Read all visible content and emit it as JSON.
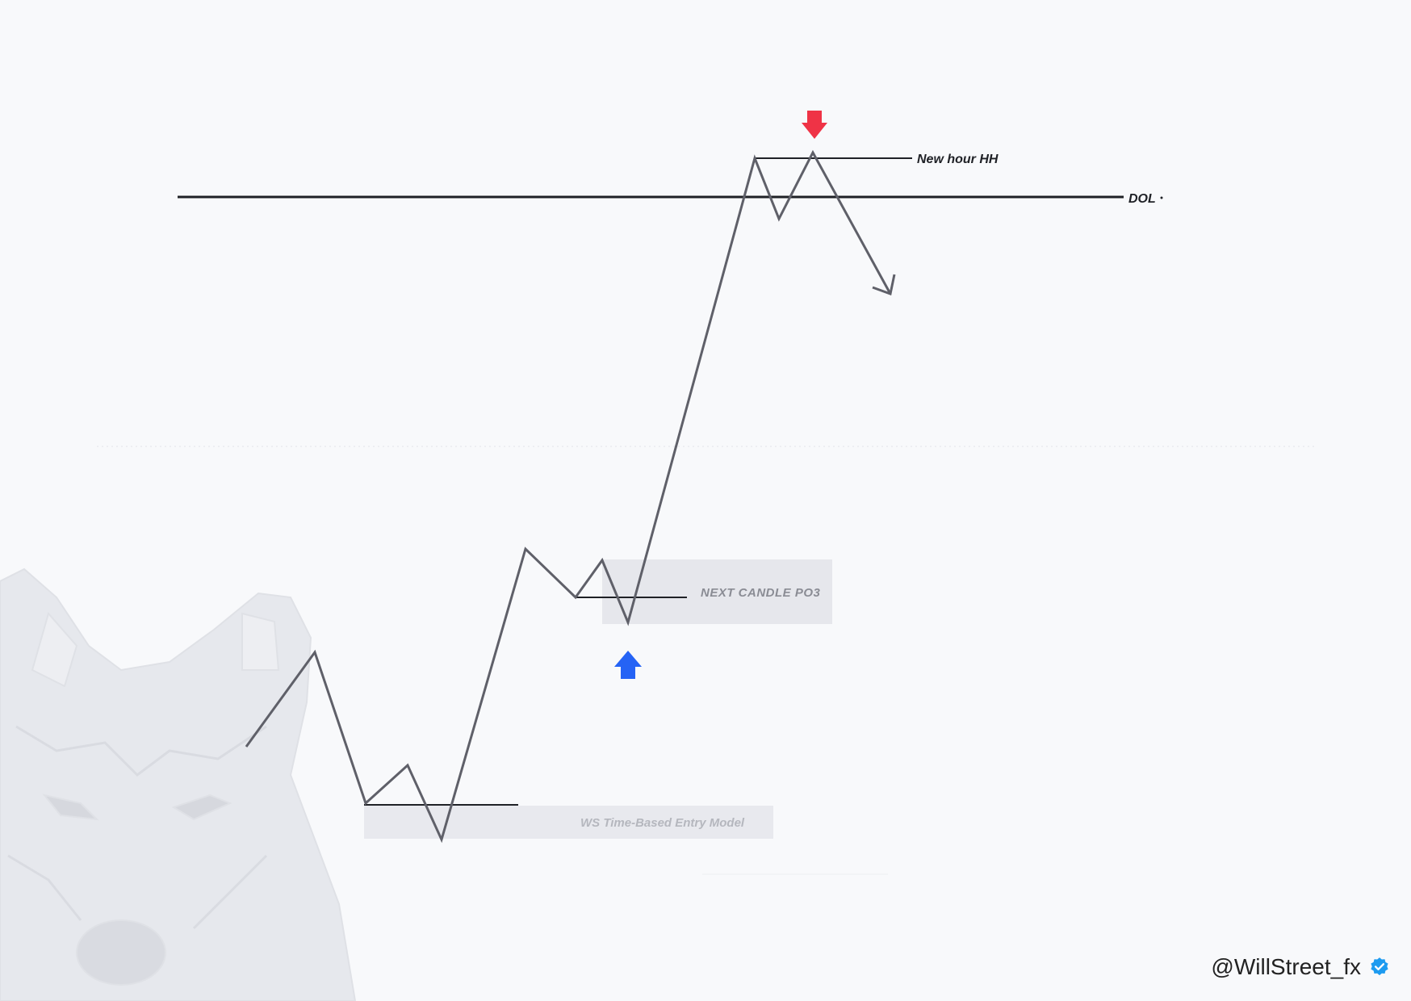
{
  "labels": {
    "new_hour_hh": "New hour HH",
    "dol": "DOL",
    "next_candle_po3": "NEXT CANDLE PO3",
    "entry_model": "WS Time-Based Entry Model"
  },
  "watermark": {
    "handle": "@WillStreet_fx",
    "verified_icon": "verified-badge-icon"
  },
  "markers": {
    "buy_arrow": "blue-up-arrow-icon",
    "sell_arrow": "red-down-arrow-icon"
  },
  "background": {
    "logo": "wolf-head"
  },
  "colors": {
    "background": "#f8f9fb",
    "price_line": "#5f6069",
    "level_line": "#1f2126",
    "highlight_box": "#e6e7ec",
    "buy_arrow": "#2563f5",
    "sell_arrow": "#ef3346",
    "wolf_watermark": "#e3e5ea",
    "verified_badge": "#1d9bf0"
  }
}
